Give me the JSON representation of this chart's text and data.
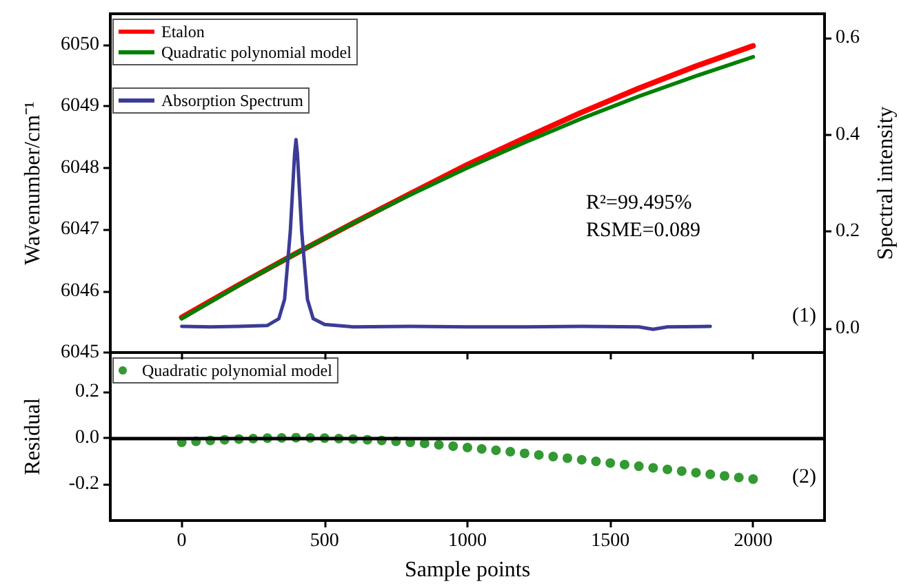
{
  "chart_data": [
    {
      "type": "line",
      "ylabel": "Wavenumber/cm⁻¹",
      "y2label": "Spectral intensity",
      "xlim": [
        -250,
        2250
      ],
      "xticks": [
        0,
        500,
        1000,
        1500,
        2000
      ],
      "ylim": [
        6045,
        6050.5
      ],
      "yticks": [
        6045,
        6046,
        6047,
        6048,
        6049,
        6050
      ],
      "y2lim": [
        -0.05,
        0.65
      ],
      "y2ticks": [
        {
          "value": 0,
          "label": "0.0"
        },
        {
          "value": 0.2,
          "label": "0.2"
        },
        {
          "value": 0.4,
          "label": "0.4"
        },
        {
          "value": 0.6,
          "label": "0.6"
        }
      ],
      "tick_labels": "y",
      "legend": "top left",
      "grid": false,
      "marker": "none",
      "line_style": "solid",
      "annotations": [
        "R²=99.495%",
        "RSME=0.089",
        "(1)"
      ],
      "series": [
        {
          "name": "Etalon",
          "color": "#ff0000",
          "x": [
            0,
            200,
            400,
            600,
            800,
            1000,
            1200,
            1400,
            1600,
            1800,
            2000
          ],
          "values": [
            6045.57,
            6046.1,
            6046.61,
            6047.1,
            6047.58,
            6048.05,
            6048.48,
            6048.9,
            6049.29,
            6049.65,
            6049.98
          ]
        },
        {
          "name": "Quadratic polynomial model",
          "color": "#008000",
          "x": [
            0,
            200,
            400,
            600,
            800,
            1000,
            1200,
            1400,
            1600,
            1800,
            2000
          ],
          "values": [
            6045.55,
            6046.09,
            6046.61,
            6047.1,
            6047.56,
            6048.0,
            6048.41,
            6048.8,
            6049.16,
            6049.49,
            6049.8
          ]
        },
        {
          "name": "Absorption Spectrum",
          "color": "#3c3c96",
          "axis": "y2",
          "x": [
            0,
            100,
            200,
            300,
            340,
            360,
            380,
            395,
            400,
            405,
            420,
            440,
            460,
            500,
            600,
            800,
            1000,
            1200,
            1400,
            1600,
            1650,
            1700,
            1850
          ],
          "values": [
            0.004,
            0.003,
            0.004,
            0.006,
            0.02,
            0.06,
            0.2,
            0.36,
            0.39,
            0.36,
            0.2,
            0.06,
            0.02,
            0.008,
            0.003,
            0.004,
            0.003,
            0.003,
            0.004,
            0.003,
            -0.002,
            0.003,
            0.004
          ]
        }
      ]
    },
    {
      "type": "scatter",
      "xlabel": "Sample points",
      "ylabel": "Residual",
      "xlim": [
        -250,
        2250
      ],
      "xticks": [
        0,
        500,
        1000,
        1500,
        2000
      ],
      "ylim": [
        -0.36,
        0.37
      ],
      "yticks": [
        {
          "value": 0.2,
          "label": "0.2"
        },
        {
          "value": 0,
          "label": "0.0"
        },
        {
          "value": -0.2,
          "label": "-0.2"
        }
      ],
      "legend": "top left",
      "grid": false,
      "marker": "circle",
      "annotations": [
        "(2)"
      ],
      "ref_lines": [
        {
          "axis": "y",
          "value": 0,
          "color": "#000000"
        }
      ],
      "series": [
        {
          "name": "Quadratic polynomial model",
          "color": "#008000",
          "x": [
            0,
            50,
            100,
            150,
            200,
            250,
            300,
            350,
            400,
            450,
            500,
            550,
            600,
            650,
            700,
            750,
            800,
            850,
            900,
            950,
            1000,
            1050,
            1100,
            1150,
            1200,
            1250,
            1300,
            1350,
            1400,
            1450,
            1500,
            1550,
            1600,
            1650,
            1700,
            1750,
            1800,
            1850,
            1900,
            1950,
            2000
          ],
          "values": [
            -0.02,
            -0.016,
            -0.012,
            -0.009,
            -0.006,
            -0.004,
            -0.002,
            -0.001,
            0,
            -0.001,
            -0.002,
            -0.004,
            -0.006,
            -0.009,
            -0.012,
            -0.016,
            -0.02,
            -0.025,
            -0.031,
            -0.037,
            -0.043,
            -0.049,
            -0.055,
            -0.061,
            -0.068,
            -0.075,
            -0.082,
            -0.089,
            -0.096,
            -0.103,
            -0.11,
            -0.117,
            -0.124,
            -0.131,
            -0.138,
            -0.145,
            -0.152,
            -0.159,
            -0.166,
            -0.173,
            -0.18
          ]
        }
      ]
    }
  ]
}
